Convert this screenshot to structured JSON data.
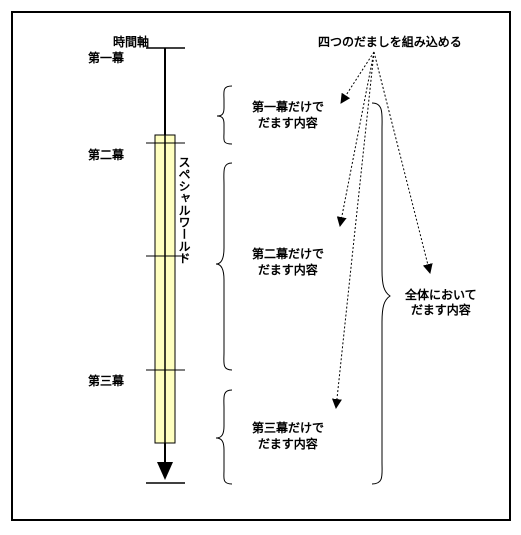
{
  "axis": {
    "label": "時間軸",
    "acts": [
      "第一幕",
      "第二幕",
      "第三幕"
    ]
  },
  "special_world": "スペシャルワールド",
  "note_top": "四つのだましを組み込める",
  "tricks": [
    {
      "line1": "第一幕だけで",
      "line2": "だます内容"
    },
    {
      "line1": "第二幕だけで",
      "line2": "だます内容"
    },
    {
      "line1": "第三幕だけで",
      "line2": "だます内容"
    }
  ],
  "overall": {
    "line1": "全体において",
    "line2": "だます内容"
  },
  "colors": {
    "special_world_fill": "#ffffc0",
    "line": "#000000"
  }
}
